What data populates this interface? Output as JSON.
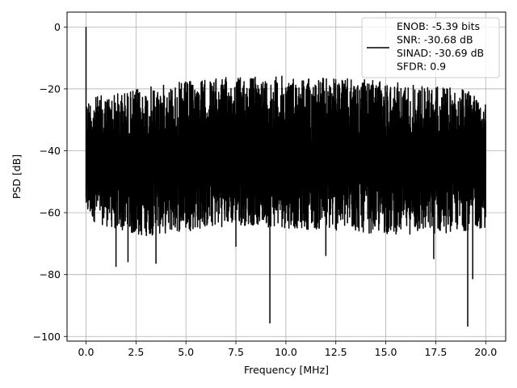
{
  "chart_data": {
    "type": "line",
    "title": "",
    "xlabel": "Frequency [MHz]",
    "ylabel": "PSD [dB]",
    "xlim": [
      -0.95,
      21.0
    ],
    "ylim": [
      -101.5,
      4.8
    ],
    "xticks": [
      0.0,
      2.5,
      5.0,
      7.5,
      10.0,
      12.5,
      15.0,
      17.5,
      20.0
    ],
    "xtick_labels": [
      "0.0",
      "2.5",
      "5.0",
      "7.5",
      "10.0",
      "12.5",
      "15.0",
      "17.5",
      "20.0"
    ],
    "yticks": [
      0,
      -20,
      -40,
      -60,
      -80,
      -100
    ],
    "ytick_labels": [
      "0",
      "−20",
      "−40",
      "−60",
      "−80",
      "−100"
    ],
    "grid": true,
    "legend": {
      "position": "top-right",
      "entries": [
        "ENOB: -5.39 bits",
        "SNR: -30.68 dB",
        "SINAD: -30.69 dB",
        "SFDR: 0.9"
      ]
    },
    "series": [
      {
        "name": "ENOB: -5.39 bits\nSNR: -30.68 dB\nSINAD: -30.69 dB\nSFDR: 0.9",
        "color": "#000000",
        "x_range": [
          0.0,
          20.0
        ],
        "peak": {
          "x": 0.0,
          "y": 0.0
        },
        "upper_envelope": [
          [
            0.0,
            -23
          ],
          [
            2.5,
            -20
          ],
          [
            5.0,
            -17.5
          ],
          [
            7.5,
            -16
          ],
          [
            10.0,
            -15.8
          ],
          [
            12.5,
            -16.5
          ],
          [
            15.0,
            -17.5
          ],
          [
            17.5,
            -19
          ],
          [
            20.0,
            -21
          ]
        ],
        "lower_envelope": [
          [
            0.0,
            -62
          ],
          [
            2.5,
            -68
          ],
          [
            5.0,
            -66
          ],
          [
            7.5,
            -64
          ],
          [
            10.0,
            -65
          ],
          [
            12.5,
            -66
          ],
          [
            15.0,
            -67
          ],
          [
            17.5,
            -67
          ],
          [
            20.0,
            -65
          ]
        ],
        "notable_dips": [
          [
            1.5,
            -77.5
          ],
          [
            2.1,
            -76
          ],
          [
            3.5,
            -76.5
          ],
          [
            7.5,
            -71
          ],
          [
            9.2,
            -95.8
          ],
          [
            12.0,
            -74
          ],
          [
            17.4,
            -75
          ],
          [
            19.1,
            -96.8
          ],
          [
            19.35,
            -81.5
          ]
        ]
      }
    ]
  }
}
